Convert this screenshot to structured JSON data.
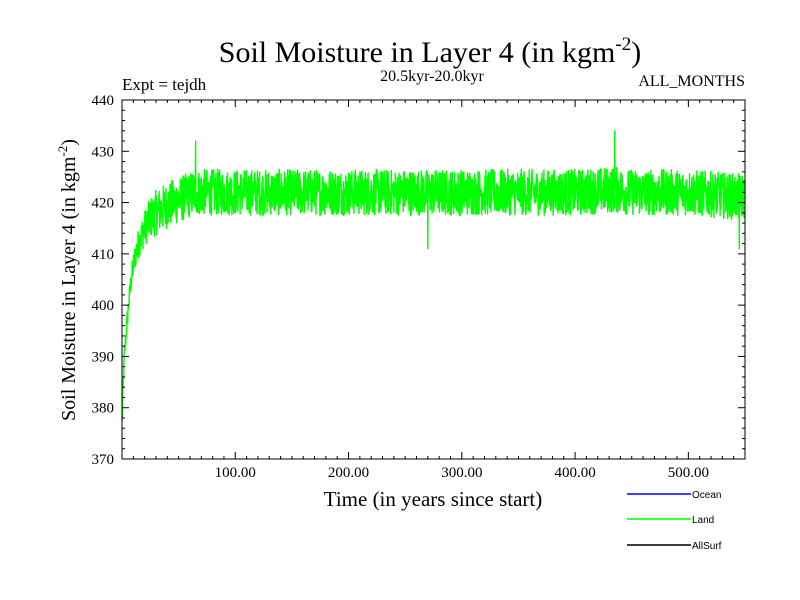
{
  "chart_data": {
    "type": "line",
    "title_main": "Soil Moisture in Layer 4 (in kgm",
    "title_sup": "-2",
    "title_close": ")",
    "left_caption": "Expt = tejdh",
    "center_caption": "20.5kyr-20.0kyr",
    "right_caption": "ALL_MONTHS",
    "xlabel": "Time (in years since start)",
    "ylabel_main": "Soil Moisture in Layer 4 (in kgm",
    "ylabel_sup": "-2",
    "ylabel_close": ")",
    "xlim": [
      0,
      550
    ],
    "ylim": [
      370,
      440
    ],
    "x_ticks": [
      100,
      200,
      300,
      400,
      500
    ],
    "x_tick_labels": [
      "100.00",
      "200.00",
      "300.00",
      "400.00",
      "500.00"
    ],
    "y_ticks": [
      370,
      380,
      390,
      400,
      410,
      420,
      430,
      440
    ],
    "y_tick_labels": [
      "370",
      "380",
      "390",
      "400",
      "410",
      "420",
      "430",
      "440"
    ],
    "legend": [
      {
        "name": "Ocean",
        "color": "#0000ff"
      },
      {
        "name": "Land",
        "color": "#00ff00"
      },
      {
        "name": "AllSurf",
        "color": "#000000"
      }
    ],
    "series": [
      {
        "name": "Land",
        "color": "#00ff00",
        "note": "noisy monthly series; rises from ~377 at start to ~422 plateau",
        "x": [
          0,
          2,
          5,
          8,
          12,
          16,
          20,
          25,
          30,
          40,
          50,
          60,
          65,
          80,
          100,
          150,
          200,
          250,
          300,
          350,
          400,
          435,
          450,
          500,
          550
        ],
        "y": [
          377,
          390,
          398,
          405,
          410,
          413,
          415,
          417,
          418,
          419.5,
          420.5,
          421.5,
          422,
          422,
          422,
          422,
          422,
          422,
          422,
          422,
          422,
          422.5,
          422,
          422,
          421
        ],
        "noise_amplitude": 4.5,
        "peaks": [
          [
            65,
            432
          ],
          [
            435,
            434
          ],
          [
            270,
            411
          ],
          [
            545,
            411
          ]
        ]
      }
    ]
  }
}
